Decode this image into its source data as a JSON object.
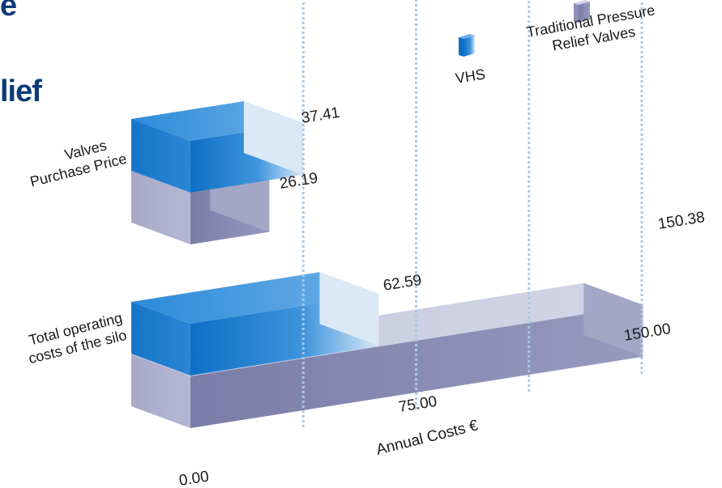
{
  "title_fragments": {
    "top": "e",
    "second": "lief"
  },
  "chart_data": {
    "type": "bar",
    "orientation": "horizontal",
    "style": "3d",
    "xlabel": "Annual Costs €",
    "xlim": [
      0,
      150
    ],
    "x_ticks": [
      "0.00",
      "75.00",
      "150.00"
    ],
    "categories": [
      "Valves Purchase Price",
      "Total operating costs of the silo"
    ],
    "category_lines": [
      [
        "Valves",
        "Purchase Price"
      ],
      [
        "Total operating",
        "costs of the silo"
      ]
    ],
    "series": [
      {
        "name": "VHS",
        "values": [
          37.41,
          62.59
        ],
        "labels": [
          "37.41",
          "62.59"
        ],
        "color": "#1e7fd0"
      },
      {
        "name": "Traditional Pressure Relief Valves",
        "name_lines": [
          "Traditional Pressure",
          "Relief Valves"
        ],
        "values": [
          26.19,
          150.38
        ],
        "labels": [
          "26.19",
          "150.38"
        ],
        "color": "#9a9cc0"
      }
    ],
    "legend_position": "top-right",
    "grid": "dashed vertical"
  }
}
